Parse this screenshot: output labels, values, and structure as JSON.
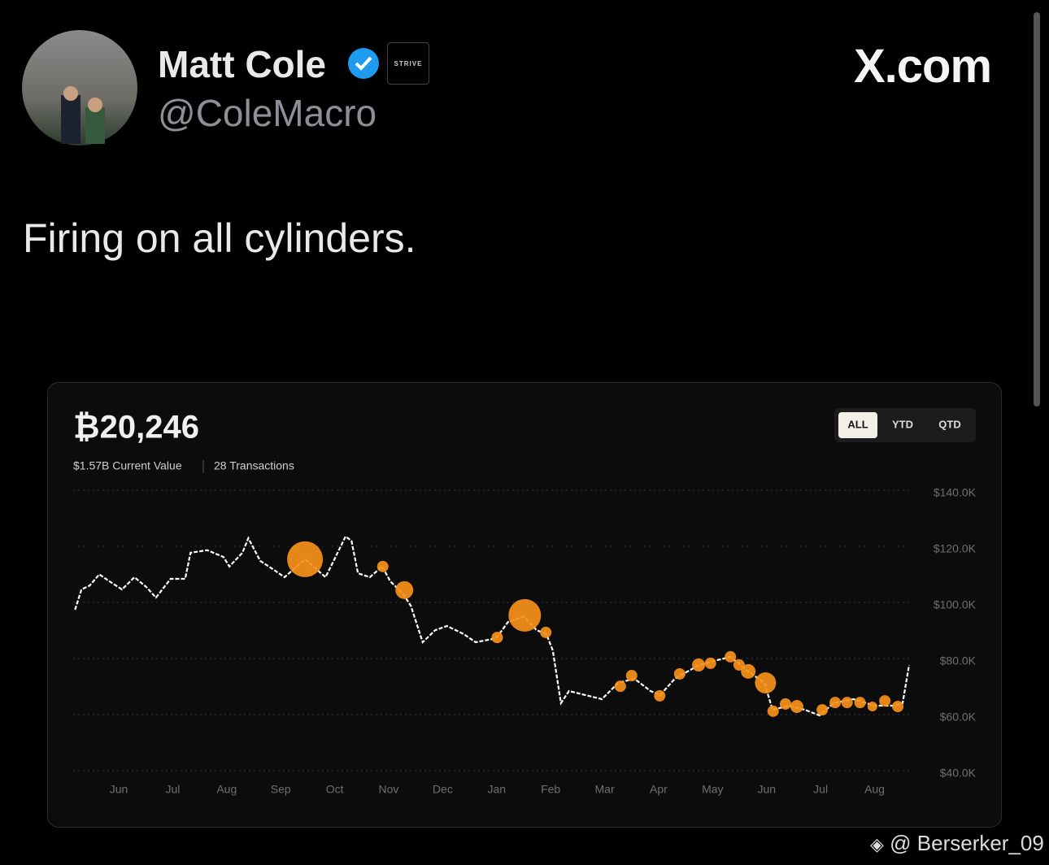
{
  "tweet": {
    "name": "Matt Cole",
    "badge": "STRIVE",
    "handle": "@ColeMacro",
    "site": "X.com",
    "text": "Firing on all cylinders.",
    "watermark": "@ Berserker_09"
  },
  "chart_data": {
    "type": "line",
    "title": "₿20,246",
    "subtitle": "$1.57B Current Value",
    "transactions": "28 Transactions",
    "buttons": [
      "ALL",
      "YTD",
      "QTD"
    ],
    "xlim": [
      -0.85,
      14.7
    ],
    "xticks": [
      {
        "value": 0,
        "label": "Jun"
      },
      {
        "value": 1,
        "label": "Jul"
      },
      {
        "value": 2,
        "label": "Aug"
      },
      {
        "value": 3,
        "label": "Sep"
      },
      {
        "value": 4,
        "label": "Oct"
      },
      {
        "value": 5,
        "label": "Nov"
      },
      {
        "value": 6,
        "label": "Dec"
      },
      {
        "value": 7,
        "label": "Jan"
      },
      {
        "value": 8,
        "label": "Feb"
      },
      {
        "value": 9,
        "label": "Mar"
      },
      {
        "value": 10,
        "label": "Apr"
      },
      {
        "value": 11,
        "label": "May"
      },
      {
        "value": 12,
        "label": "Jun"
      },
      {
        "value": 13,
        "label": "Jul"
      },
      {
        "value": 14,
        "label": "Aug"
      }
    ],
    "ylim": [
      40000,
      140000
    ],
    "yticks": [
      {
        "value": 40000,
        "label": "$40.0K"
      },
      {
        "value": 60000,
        "label": "$60.0K"
      },
      {
        "value": 80000,
        "label": "$80.0K"
      },
      {
        "value": 100000,
        "label": "$100.0K"
      },
      {
        "value": 120000,
        "label": "$120.0K"
      },
      {
        "value": 140000,
        "label": "$140.0K"
      }
    ],
    "grid": true,
    "series": [
      {
        "type": "line",
        "color": "#ffffff",
        "x": [
          -0.81,
          -0.69,
          -0.54,
          -0.36,
          -0.17,
          0.06,
          0.29,
          0.51,
          0.69,
          0.96,
          1.23,
          1.33,
          1.64,
          1.94,
          2.05,
          2.29,
          2.4,
          2.62,
          2.85,
          3.07,
          3.45,
          3.83,
          3.98,
          4.2,
          4.31,
          4.43,
          4.65,
          4.88,
          5.03,
          5.26,
          5.41,
          5.63,
          5.86,
          6.08,
          6.39,
          6.61,
          6.99,
          7.21,
          7.51,
          7.74,
          7.92,
          8.04,
          8.19,
          8.34,
          8.64,
          8.95,
          9.25,
          9.55,
          9.85,
          10.03,
          10.3,
          10.75,
          11.33,
          11.66,
          11.96,
          12.11,
          12.41,
          12.71,
          12.98,
          13.24,
          13.61,
          13.99,
          14.37,
          14.52,
          14.64
        ],
        "values": [
          97400,
          104600,
          106000,
          110000,
          107500,
          104600,
          109000,
          105500,
          101700,
          108400,
          108400,
          117700,
          118600,
          116200,
          112800,
          117700,
          122900,
          114800,
          111900,
          109000,
          115400,
          109000,
          114800,
          123500,
          122000,
          110400,
          109000,
          112800,
          107500,
          103200,
          98800,
          85800,
          90100,
          91600,
          88700,
          85800,
          87200,
          93000,
          95000,
          90100,
          88700,
          82900,
          64100,
          68400,
          67000,
          65500,
          71300,
          72800,
          68400,
          67000,
          72800,
          77700,
          80600,
          75400,
          71300,
          61700,
          63200,
          61700,
          59700,
          64100,
          65500,
          63200,
          63200,
          64100,
          77700
        ]
      },
      {
        "type": "scatter",
        "color": "#f7931a",
        "x": [
          3.45,
          4.89,
          5.29,
          7.01,
          7.52,
          7.91,
          9.29,
          9.5,
          10.02,
          10.39,
          10.74,
          10.96,
          11.33,
          11.49,
          11.66,
          11.98,
          12.12,
          12.35,
          12.56,
          13.03,
          13.27,
          13.49,
          13.73,
          13.96,
          14.19,
          14.43
        ],
        "values": [
          115400,
          112800,
          104400,
          87500,
          95400,
          89300,
          70100,
          73900,
          66700,
          74500,
          77700,
          78300,
          80600,
          77700,
          75400,
          71300,
          61200,
          63800,
          62900,
          61700,
          64300,
          64300,
          64300,
          62900,
          64900,
          62900
        ],
        "sizes": [
          22,
          7,
          11,
          7,
          20,
          7,
          7,
          7,
          7,
          7,
          8,
          7,
          7,
          7,
          9,
          13,
          7,
          7,
          8,
          7,
          7,
          7,
          7,
          6,
          7,
          7
        ]
      }
    ]
  }
}
